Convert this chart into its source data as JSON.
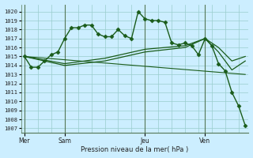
{
  "background_color": "#cceeff",
  "grid_color": "#99cccc",
  "line_color": "#1a5c1a",
  "title": "Pression niveau de la mer( hPa )",
  "ylabel_ticks": [
    1007,
    1008,
    1009,
    1010,
    1011,
    1012,
    1013,
    1014,
    1015,
    1016,
    1017,
    1018,
    1019,
    1020
  ],
  "ylim": [
    1006.5,
    1020.8
  ],
  "day_labels": [
    "Mer",
    "Sam",
    "Jeu",
    "Ven"
  ],
  "day_positions": [
    0,
    6,
    18,
    27
  ],
  "xlim": [
    -0.5,
    33.5
  ],
  "series": [
    {
      "x": [
        0,
        1,
        2,
        3,
        4,
        5,
        6,
        7,
        8,
        9,
        10,
        11,
        12,
        13,
        14,
        15,
        16,
        17,
        18,
        19,
        20,
        21,
        22,
        23,
        24,
        25,
        26,
        27,
        28,
        29,
        30,
        31,
        32,
        33
      ],
      "y": [
        1015,
        1013.8,
        1013.8,
        1014.5,
        1015.2,
        1015.5,
        1017,
        1018.2,
        1018.2,
        1018.5,
        1018.5,
        1017.5,
        1017.2,
        1017.2,
        1018.0,
        1017.3,
        1017.0,
        1020.0,
        1019.2,
        1019.0,
        1019.0,
        1018.8,
        1016.5,
        1016.3,
        1016.5,
        1016.2,
        1015.2,
        1017.0,
        1016.2,
        1014.2,
        1013.4,
        1011.0,
        1009.5,
        1007.3
      ],
      "marker": "D",
      "markersize": 2.5,
      "linewidth": 1.0
    },
    {
      "x": [
        0,
        6,
        12,
        18,
        24,
        27,
        29,
        31,
        33
      ],
      "y": [
        1015,
        1014.2,
        1014.8,
        1015.8,
        1016.2,
        1017.0,
        1016.0,
        1014.5,
        1015.0
      ],
      "marker": null,
      "linewidth": 0.9
    },
    {
      "x": [
        0,
        6,
        12,
        18,
        24,
        27,
        29,
        31,
        33
      ],
      "y": [
        1015,
        1014.0,
        1014.5,
        1015.5,
        1016.0,
        1017.0,
        1015.5,
        1013.5,
        1014.5
      ],
      "marker": null,
      "linewidth": 0.9
    },
    {
      "x": [
        0,
        33
      ],
      "y": [
        1015,
        1013.0
      ],
      "marker": null,
      "linewidth": 0.8
    }
  ]
}
